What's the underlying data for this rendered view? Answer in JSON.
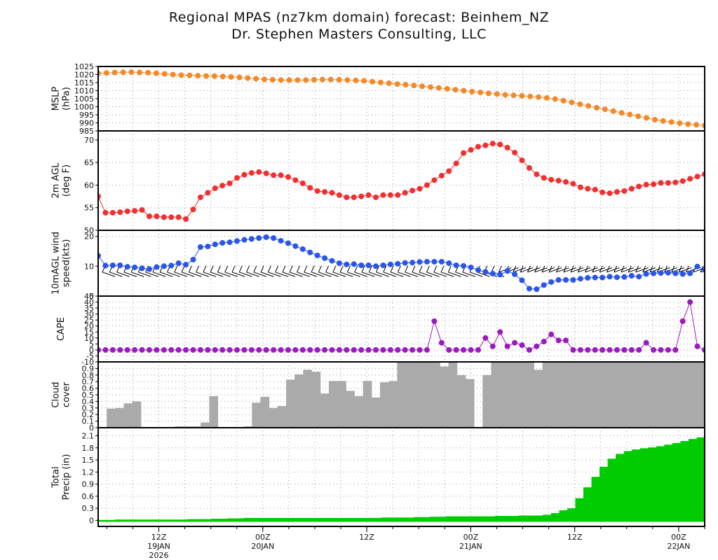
{
  "header": {
    "title": "Regional MPAS (nz7km domain) forecast: Beinhem_NZ",
    "subtitle": "Dr. Stephen Masters Consulting, LLC"
  },
  "x_axis": {
    "ticks": [
      {
        "t": 12,
        "label1": "12Z",
        "label2": "19JAN",
        "label3": "2026"
      },
      {
        "t": 24,
        "label1": "00Z",
        "label2": "20JAN",
        "label3": ""
      },
      {
        "t": 36,
        "label1": "12Z",
        "label2": "",
        "label3": ""
      },
      {
        "t": 48,
        "label1": "00Z",
        "label2": "21JAN",
        "label3": ""
      },
      {
        "t": 60,
        "label1": "12Z",
        "label2": "",
        "label3": ""
      },
      {
        "t": 72,
        "label1": "00Z",
        "label2": "22JAN",
        "label3": ""
      }
    ],
    "time_range_hours": [
      5,
      75
    ],
    "unit": "hours from 00Z 19JAN 2026"
  },
  "chart_data": [
    {
      "type": "line",
      "ylabel": [
        "MSLP",
        "(hPa)"
      ],
      "ylim": [
        985,
        1025
      ],
      "yticks": [
        985,
        990,
        995,
        1000,
        1005,
        1010,
        1015,
        1020,
        1025
      ],
      "grid": true,
      "color": "#f28a2a",
      "series": [
        {
          "values": [
            1020.8,
            1021.0,
            1021.3,
            1021.4,
            1021.5,
            1021.3,
            1021.2,
            1020.8,
            1020.4,
            1020.0,
            1019.6,
            1019.5,
            1019.3,
            1019.1,
            1019.0,
            1018.8,
            1018.5,
            1018.2,
            1017.8,
            1017.4,
            1017.0,
            1016.8,
            1016.6,
            1016.6,
            1016.6,
            1016.6,
            1016.8,
            1016.9,
            1016.9,
            1016.8,
            1016.6,
            1016.4,
            1016.1,
            1015.6,
            1015.1,
            1014.6,
            1014.1,
            1013.7,
            1013.2,
            1012.7,
            1012.2,
            1011.7,
            1011.2,
            1010.6,
            1010.0,
            1009.4,
            1008.9,
            1008.3,
            1007.9,
            1007.4,
            1007.1,
            1006.8,
            1006.4,
            1006.0,
            1005.5,
            1004.8,
            1003.8,
            1002.7,
            1001.6,
            1000.5,
            999.4,
            998.4,
            997.3,
            996.2,
            995.2,
            994.1,
            993.1,
            992.0,
            991.2,
            990.5,
            989.8,
            989.2,
            988.8,
            988.3
          ]
        }
      ]
    },
    {
      "type": "line",
      "ylabel": [
        "2m AGL",
        "(deg F)"
      ],
      "ylim": [
        50,
        72
      ],
      "yticks": [
        50,
        55,
        60,
        65,
        70
      ],
      "grid": true,
      "color": "#f03030",
      "series": [
        {
          "values": [
            57.5,
            53.9,
            53.9,
            54.0,
            54.2,
            54.3,
            54.5,
            53.1,
            53.1,
            52.9,
            52.9,
            52.9,
            52.5,
            54.6,
            57.3,
            58.3,
            59.3,
            59.9,
            60.4,
            61.6,
            62.3,
            62.7,
            62.9,
            62.6,
            62.2,
            62.2,
            61.8,
            61.1,
            60.4,
            59.4,
            58.7,
            58.5,
            58.3,
            57.8,
            57.3,
            57.3,
            57.5,
            57.8,
            57.3,
            57.8,
            57.8,
            57.8,
            58.3,
            58.8,
            59.2,
            60.0,
            61.1,
            62.1,
            63.1,
            64.8,
            67.1,
            67.8,
            68.5,
            68.8,
            69.2,
            69.0,
            68.3,
            67.2,
            65.5,
            63.8,
            62.4,
            61.6,
            61.2,
            61.0,
            60.7,
            60.3,
            59.5,
            59.2,
            59.0,
            58.4,
            58.2,
            58.5,
            58.7,
            59.2,
            59.7,
            60.1,
            60.2,
            60.5,
            60.5,
            60.6,
            60.9,
            61.4,
            61.9,
            62.4
          ]
        }
      ]
    },
    {
      "type": "line",
      "ylabel": [
        "10mAGL wind",
        "speed(kts)"
      ],
      "ylim": [
        0,
        22
      ],
      "yticks": [
        0,
        10,
        20
      ],
      "grid": true,
      "color": "#2a55e8",
      "wind_barbs": true,
      "series": [
        {
          "values": [
            13.5,
            10.2,
            10.3,
            10.3,
            9.8,
            9.6,
            9.3,
            9.0,
            9.7,
            10.0,
            10.2,
            11.0,
            10.5,
            12.2,
            16.4,
            16.6,
            17.3,
            17.8,
            18.0,
            18.4,
            18.8,
            19.1,
            19.4,
            19.7,
            19.4,
            18.5,
            17.7,
            16.7,
            15.7,
            14.6,
            13.6,
            12.7,
            11.8,
            11.0,
            10.6,
            10.7,
            10.3,
            10.3,
            10.0,
            10.3,
            10.6,
            10.8,
            11.1,
            11.2,
            11.4,
            11.5,
            11.5,
            11.5,
            11.0,
            10.3,
            10.1,
            9.6,
            8.7,
            8.1,
            7.5,
            7.2,
            8.4,
            7.3,
            5.3,
            2.5,
            2.3,
            3.7,
            4.7,
            5.4,
            5.4,
            5.4,
            5.8,
            6.1,
            6.2,
            6.2,
            6.5,
            6.3,
            6.4,
            6.8,
            6.5,
            7.4,
            7.6,
            7.7,
            7.8,
            7.6,
            7.4,
            7.6,
            9.9,
            8.8
          ]
        }
      ]
    },
    {
      "type": "line",
      "ylabel": [
        "CAPE"
      ],
      "ylim": [
        -10,
        45
      ],
      "yticks": [
        -10,
        -5,
        0,
        5,
        10,
        15,
        20,
        25,
        30,
        35,
        40,
        45
      ],
      "grid": true,
      "color": "#9b1bbd",
      "series": [
        {
          "values": [
            0,
            0,
            0,
            0,
            0,
            0,
            0,
            0,
            0,
            0,
            0,
            0,
            0,
            0,
            0,
            0,
            0,
            0,
            0,
            0,
            0,
            0,
            0,
            0,
            0,
            0,
            0,
            0,
            0,
            0,
            0,
            0,
            0,
            0,
            0,
            0,
            0,
            0,
            0,
            0,
            0,
            0,
            0,
            0,
            0,
            0,
            24,
            6,
            0,
            0,
            0,
            0,
            0,
            10,
            3,
            15,
            3,
            6,
            4,
            0,
            3,
            7,
            13,
            8,
            8,
            0,
            0,
            0,
            0,
            0,
            0,
            0,
            0,
            0,
            0,
            6,
            0,
            0,
            0,
            0,
            24,
            40,
            3,
            0
          ]
        }
      ]
    },
    {
      "type": "bar",
      "ylabel": [
        "Cloud",
        "cover"
      ],
      "ylim": [
        0,
        1
      ],
      "yticks": [
        0,
        0.1,
        0.2,
        0.3,
        0.4,
        0.5,
        0.6,
        0.7,
        0.8,
        0.9
      ],
      "grid": true,
      "color": "#aaaaaa",
      "values": [
        0,
        0.29,
        0.3,
        0.37,
        0.4,
        0.01,
        0.01,
        0.01,
        0.01,
        0.02,
        0.02,
        0.02,
        0.08,
        0.48,
        0.01,
        0.01,
        0.01,
        0.02,
        0.38,
        0.47,
        0.3,
        0.33,
        0.73,
        0.81,
        0.88,
        0.85,
        0.52,
        0.71,
        0.71,
        0.56,
        0.48,
        0.71,
        0.46,
        0.69,
        0.71,
        1,
        1,
        1,
        1,
        1,
        0.93,
        1,
        0.8,
        0.74,
        0,
        0.8,
        1,
        1,
        1,
        1,
        1,
        0.88,
        1,
        1,
        1,
        1,
        1,
        1,
        1,
        1,
        1,
        1,
        1,
        1,
        1,
        1,
        1,
        1,
        1,
        1,
        1
      ]
    },
    {
      "type": "area",
      "ylabel": [
        "Total",
        "Precip (in)"
      ],
      "ylim": [
        -0.15,
        2.3
      ],
      "yticks": [
        0,
        0.3,
        0.6,
        0.9,
        1.2,
        1.5,
        1.8,
        2.1
      ],
      "grid": true,
      "color": "#00cc00",
      "values": [
        0.01,
        0.01,
        0.02,
        0.02,
        0.02,
        0.02,
        0.02,
        0.02,
        0.02,
        0.02,
        0.02,
        0.03,
        0.03,
        0.03,
        0.04,
        0.04,
        0.05,
        0.05,
        0.06,
        0.06,
        0.06,
        0.06,
        0.06,
        0.06,
        0.06,
        0.06,
        0.06,
        0.06,
        0.06,
        0.06,
        0.06,
        0.06,
        0.06,
        0.06,
        0.06,
        0.07,
        0.07,
        0.07,
        0.07,
        0.08,
        0.08,
        0.09,
        0.09,
        0.1,
        0.1,
        0.1,
        0.1,
        0.1,
        0.1,
        0.11,
        0.11,
        0.11,
        0.12,
        0.12,
        0.12,
        0.14,
        0.18,
        0.25,
        0.3,
        0.55,
        0.82,
        1.08,
        1.33,
        1.53,
        1.65,
        1.72,
        1.76,
        1.79,
        1.81,
        1.84,
        1.88,
        1.92,
        1.97,
        2.02,
        2.06
      ]
    }
  ]
}
